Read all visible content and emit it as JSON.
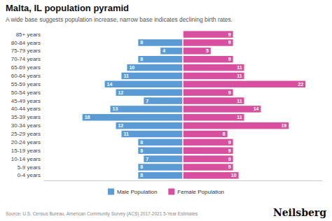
{
  "chart_data": {
    "type": "bar",
    "orientation": "horizontal",
    "title": "Malta, IL population pyramid",
    "subtitle": "A wide base suggests population increase, narrow base indicates declining birth rates.",
    "annotations": [
      "Source: U.S. Census Bureau, American Community Survey (ACS) 2017-2021 5-Year Estimates",
      "Neilsberg"
    ],
    "categories": [
      "0-4 years",
      "5-9 years",
      "10-14 years",
      "15-19 years",
      "20-24 years",
      "25-29 years",
      "30-34 years",
      "35-39 years",
      "40-44 years",
      "45-49 years",
      "50-54 years",
      "55-59 years",
      "60-64 years",
      "65-69 years",
      "70-74 years",
      "75-79 years",
      "80-84 years",
      "85+ years"
    ],
    "series": [
      {
        "name": "Male Population",
        "color": "#5b9bd5",
        "values": [
          8,
          8,
          7,
          8,
          8,
          11,
          12,
          18,
          13,
          7,
          12,
          14,
          11,
          10,
          8,
          4,
          8,
          0
        ]
      },
      {
        "name": "Female Population",
        "color": "#d94fa0",
        "values": [
          10,
          9,
          9,
          9,
          9,
          8,
          19,
          11,
          14,
          11,
          9,
          22,
          11,
          11,
          9,
          5,
          9,
          9
        ]
      }
    ],
    "xlim": [
      -25,
      25
    ],
    "tick_labels": "y",
    "data_labels": true,
    "legend": "bottom",
    "grid": false
  }
}
